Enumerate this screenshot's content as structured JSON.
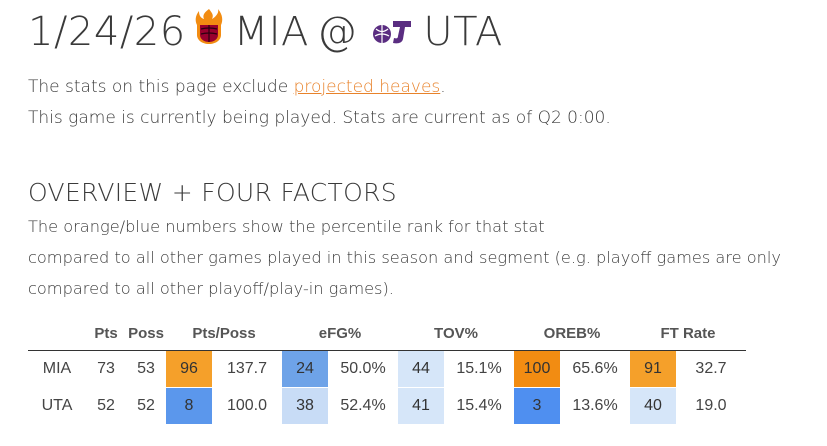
{
  "header": {
    "date": "1/24/26",
    "away_team": "MIA",
    "at": "@",
    "home_team": "UTA",
    "away_logo_icon": "heat-logo-icon",
    "home_logo_icon": "jazz-logo-icon"
  },
  "notes": {
    "line1_prefix": "The stats on this page exclude ",
    "line1_link": "projected heaves",
    "line1_suffix": ".",
    "line2": "This game is currently being played. Stats are current as of Q2 0:00."
  },
  "section": {
    "title": "OVERVIEW + FOUR FACTORS",
    "desc_lines": [
      "The orange/blue numbers show the percentile rank for that stat",
      "compared to all other games played in this season and segment (e.g. playoff games are only",
      "compared to all other playoff/play-in games)."
    ]
  },
  "table": {
    "columns": [
      "",
      "Pts",
      "Poss",
      "Pts/Poss",
      "eFG%",
      "TOV%",
      "OREB%",
      "FT Rate"
    ],
    "rows": [
      {
        "team": "MIA",
        "pts": "73",
        "poss": "53",
        "pts_poss": {
          "pct": "96",
          "val": "137.7",
          "bg": "#f5a02a",
          "color": "#333333"
        },
        "efg": {
          "pct": "24",
          "val": "50.0%",
          "bg": "#6ea3e8",
          "color": "#333333"
        },
        "tov": {
          "pct": "44",
          "val": "15.1%",
          "bg": "#d6e6f9",
          "color": "#333333"
        },
        "oreb": {
          "pct": "100",
          "val": "65.6%",
          "bg": "#f28c12",
          "color": "#333333"
        },
        "ft": {
          "pct": "91",
          "val": "32.7",
          "bg": "#f5a02a",
          "color": "#333333"
        }
      },
      {
        "team": "UTA",
        "pts": "52",
        "poss": "52",
        "pts_poss": {
          "pct": "8",
          "val": "100.0",
          "bg": "#5b97ec",
          "color": "#333333"
        },
        "efg": {
          "pct": "38",
          "val": "52.4%",
          "bg": "#c8dcf6",
          "color": "#333333"
        },
        "tov": {
          "pct": "41",
          "val": "15.4%",
          "bg": "#d6e6f9",
          "color": "#333333"
        },
        "oreb": {
          "pct": "3",
          "val": "13.6%",
          "bg": "#4f8ff0",
          "color": "#333333"
        },
        "ft": {
          "pct": "40",
          "val": "19.0",
          "bg": "#d6e6f9",
          "color": "#333333"
        }
      }
    ]
  }
}
